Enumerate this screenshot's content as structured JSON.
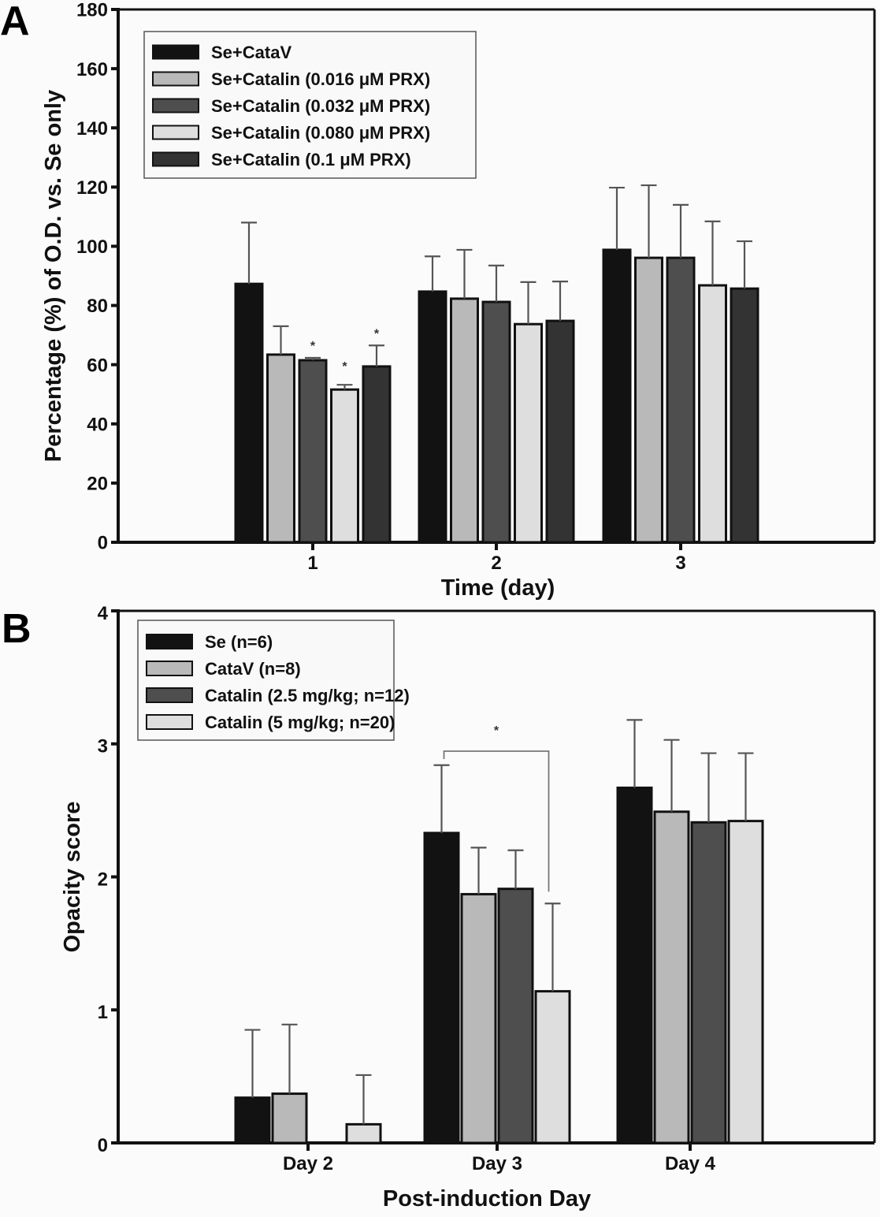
{
  "chart_data": [
    {
      "panel": "A",
      "type": "bar",
      "title": "",
      "xlabel": "Time (day)",
      "ylabel": "Percentage (%) of O.D. vs. Se only",
      "ylim": [
        0,
        180
      ],
      "yticks": [
        0,
        20,
        40,
        60,
        80,
        100,
        120,
        140,
        160,
        180
      ],
      "categories": [
        "1",
        "2",
        "3"
      ],
      "legend_position": "top-left",
      "series": [
        {
          "name": "Se+CataV",
          "color": "#121212",
          "values": [
            87.3,
            84.7,
            98.8
          ],
          "errors": [
            20.7,
            11.9,
            21.0
          ]
        },
        {
          "name": "Se+Catalin (0.016 μM PRX)",
          "color": "#b9b9b9",
          "values": [
            63.4,
            82.3,
            96.1
          ],
          "errors": [
            9.6,
            16.5,
            24.5
          ]
        },
        {
          "name": "Se+Catalin (0.032 μM PRX)",
          "color": "#4e4e4e",
          "values": [
            61.5,
            81.2,
            96.1
          ],
          "errors": [
            0.8,
            12.3,
            17.9
          ]
        },
        {
          "name": "Se+Catalin (0.080 μM PRX)",
          "color": "#dedede",
          "values": [
            51.6,
            73.7,
            86.8
          ],
          "errors": [
            1.6,
            14.2,
            21.6
          ]
        },
        {
          "name": "Se+Catalin (0.1 μM PRX)",
          "color": "#333333",
          "values": [
            59.4,
            74.8,
            85.7
          ],
          "errors": [
            7.1,
            13.3,
            16.0
          ]
        }
      ],
      "annotations": [
        {
          "text": "*",
          "category": "1",
          "series": 2
        },
        {
          "text": "*",
          "category": "1",
          "series": 3
        },
        {
          "text": "*",
          "category": "1",
          "series": 4
        }
      ]
    },
    {
      "panel": "B",
      "type": "bar",
      "title": "",
      "xlabel": "Post-induction Day",
      "ylabel": "Opacity score",
      "ylim": [
        0,
        4
      ],
      "yticks": [
        0,
        1,
        2,
        3,
        4
      ],
      "categories": [
        "Day 2",
        "Day 3",
        "Day 4"
      ],
      "legend_position": "top-left",
      "series": [
        {
          "name": "Se (n=6)",
          "color": "#121212",
          "values": [
            0.34,
            2.33,
            2.67
          ],
          "errors": [
            0.51,
            0.51,
            0.51
          ]
        },
        {
          "name": "CataV (n=8)",
          "color": "#b9b9b9",
          "values": [
            0.37,
            1.87,
            2.49
          ],
          "errors": [
            0.52,
            0.35,
            0.54
          ]
        },
        {
          "name": "Catalin (2.5 mg/kg; n=12)",
          "color": "#4e4e4e",
          "values": [
            0,
            1.91,
            2.41
          ],
          "errors": [
            0,
            0.29,
            0.52
          ]
        },
        {
          "name": "Catalin (5 mg/kg; n=20)",
          "color": "#dedede",
          "values": [
            0.14,
            1.14,
            2.42
          ],
          "errors": [
            0.37,
            0.66,
            0.51
          ]
        }
      ],
      "annotations": [
        {
          "text": "*",
          "type": "significance-bracket",
          "category": "Day 3",
          "from_series": 0,
          "to_series": 3
        }
      ]
    }
  ],
  "labels": {
    "panel_a": "A",
    "panel_b": "B"
  }
}
